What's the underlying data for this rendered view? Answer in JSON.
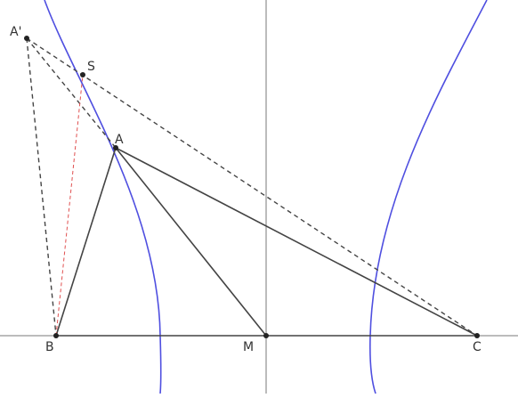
{
  "diagram": {
    "colors": {
      "axis": "#7a7a7a",
      "segment": "#444444",
      "dashed": "#444444",
      "dashed_red": "#e05050",
      "hyperbola": "#4f4fe0",
      "point": "#222222",
      "label": "#333333"
    },
    "labels": {
      "A_prime": "A'",
      "S": "S",
      "A": "A",
      "B": "B",
      "M": "M",
      "C": "C"
    }
  }
}
